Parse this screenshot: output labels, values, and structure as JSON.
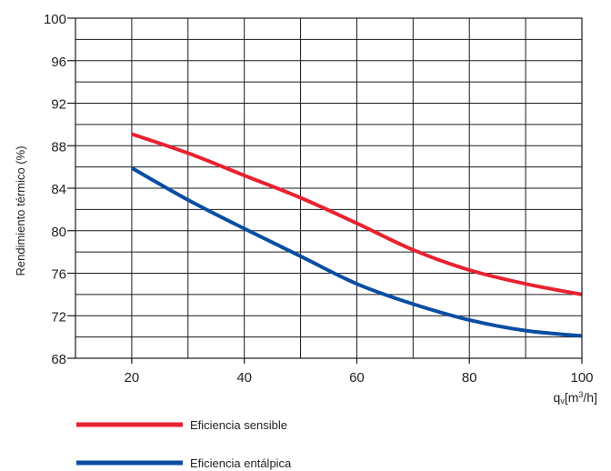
{
  "chart_data": {
    "type": "line",
    "ylabel": "Rendimiento térmico (%)",
    "xlabel": {
      "main": "q",
      "subscript": "v",
      "unit_prefix": "[m",
      "unit_exp": "3",
      "unit_suffix": "/h]"
    },
    "xlim": [
      10,
      100
    ],
    "ylim": [
      68,
      100
    ],
    "x_ticks": [
      "20",
      "40",
      "60",
      "80",
      "100"
    ],
    "y_ticks": [
      "68",
      "72",
      "76",
      "80",
      "84",
      "88",
      "92",
      "96",
      "100"
    ],
    "grid": true,
    "legend_position": "bottom-left",
    "series": [
      {
        "name": "Eficiencia sensible",
        "color": "#e8222f",
        "x": [
          20,
          30,
          40,
          50,
          60,
          70,
          80,
          90,
          100
        ],
        "y": [
          89.1,
          87.3,
          85.2,
          83.1,
          80.7,
          78.2,
          76.3,
          75.0,
          74.0
        ]
      },
      {
        "name": "Eficiencia entálpica",
        "color": "#0a4ea3",
        "x": [
          20,
          30,
          40,
          50,
          60,
          70,
          80,
          90,
          100
        ],
        "y": [
          85.9,
          82.9,
          80.2,
          77.6,
          75.0,
          73.1,
          71.6,
          70.6,
          70.1
        ]
      }
    ]
  }
}
